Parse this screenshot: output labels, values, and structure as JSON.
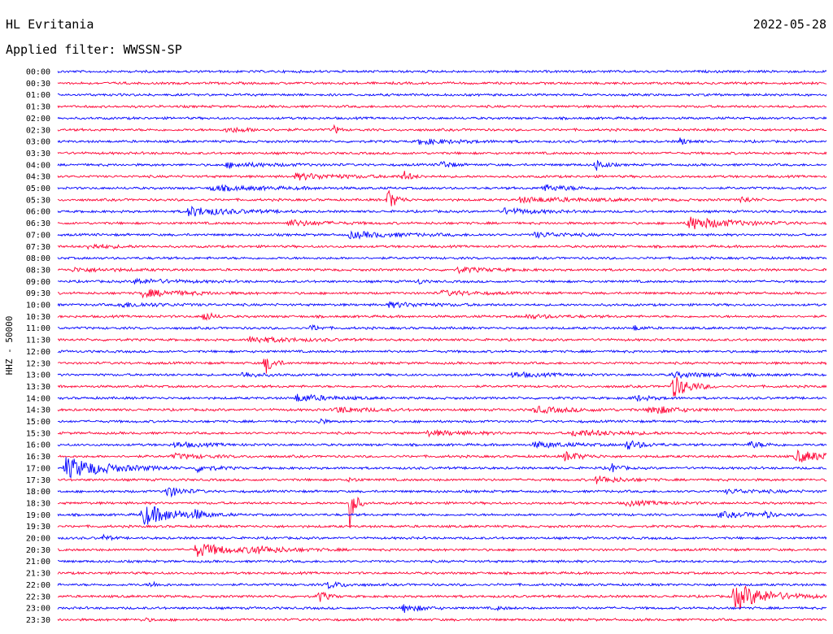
{
  "header": {
    "station": "HL Evritania",
    "date": "2022-05-28",
    "filter": "Applied filter: WWSSN-SP"
  },
  "chart_data": {
    "type": "line",
    "title": "HL Evritania",
    "subtitle": "Applied filter: WWSSN-SP",
    "ylabel": "HHZ - 50000",
    "xlabel": "",
    "grid": false,
    "legend": "none",
    "colors": {
      "even_rows": "#0000ff",
      "odd_rows": "#ff0033"
    },
    "row_labels": [
      "00:00",
      "00:30",
      "01:00",
      "01:30",
      "02:00",
      "02:30",
      "03:00",
      "03:30",
      "04:00",
      "04:30",
      "05:00",
      "05:30",
      "06:00",
      "06:30",
      "07:00",
      "07:30",
      "08:00",
      "08:30",
      "09:00",
      "09:30",
      "10:00",
      "10:30",
      "11:00",
      "11:30",
      "12:00",
      "12:30",
      "13:00",
      "13:30",
      "14:00",
      "14:30",
      "15:00",
      "15:30",
      "16:00",
      "16:30",
      "17:00",
      "17:30",
      "18:00",
      "18:30",
      "19:00",
      "19:30",
      "20:00",
      "20:30",
      "21:00",
      "21:30",
      "22:00",
      "22:30",
      "23:00",
      "23:30"
    ],
    "events": [
      {
        "row": 5,
        "x": 0.22,
        "amp": 0.4,
        "dur": 0.03
      },
      {
        "row": 5,
        "x": 0.36,
        "amp": 0.8,
        "dur": 0.005
      },
      {
        "row": 6,
        "x": 0.47,
        "amp": 0.4,
        "dur": 0.05
      },
      {
        "row": 6,
        "x": 0.81,
        "amp": 0.6,
        "dur": 0.01
      },
      {
        "row": 8,
        "x": 0.22,
        "amp": 0.4,
        "dur": 0.05
      },
      {
        "row": 8,
        "x": 0.5,
        "amp": 0.8,
        "dur": 0.01
      },
      {
        "row": 8,
        "x": 0.7,
        "amp": 1.0,
        "dur": 0.01
      },
      {
        "row": 9,
        "x": 0.31,
        "amp": 0.5,
        "dur": 0.06
      },
      {
        "row": 9,
        "x": 0.45,
        "amp": 0.9,
        "dur": 0.008
      },
      {
        "row": 10,
        "x": 0.2,
        "amp": 0.4,
        "dur": 0.07
      },
      {
        "row": 10,
        "x": 0.63,
        "amp": 0.5,
        "dur": 0.04
      },
      {
        "row": 11,
        "x": 0.43,
        "amp": 1.8,
        "dur": 0.01
      },
      {
        "row": 11,
        "x": 0.6,
        "amp": 0.4,
        "dur": 0.08
      },
      {
        "row": 11,
        "x": 0.89,
        "amp": 0.6,
        "dur": 0.01
      },
      {
        "row": 12,
        "x": 0.17,
        "amp": 0.8,
        "dur": 0.05
      },
      {
        "row": 12,
        "x": 0.58,
        "amp": 0.5,
        "dur": 0.04
      },
      {
        "row": 13,
        "x": 0.3,
        "amp": 0.5,
        "dur": 0.04
      },
      {
        "row": 13,
        "x": 0.82,
        "amp": 1.1,
        "dur": 0.05
      },
      {
        "row": 14,
        "x": 0.38,
        "amp": 0.5,
        "dur": 0.06
      },
      {
        "row": 14,
        "x": 0.62,
        "amp": 0.4,
        "dur": 0.04
      },
      {
        "row": 15,
        "x": 0.04,
        "amp": 0.4,
        "dur": 0.03
      },
      {
        "row": 17,
        "x": 0.02,
        "amp": 0.3,
        "dur": 0.05
      },
      {
        "row": 17,
        "x": 0.52,
        "amp": 0.4,
        "dur": 0.04
      },
      {
        "row": 18,
        "x": 0.1,
        "amp": 0.4,
        "dur": 0.05
      },
      {
        "row": 18,
        "x": 0.47,
        "amp": 0.5,
        "dur": 0.005
      },
      {
        "row": 19,
        "x": 0.11,
        "amp": 0.6,
        "dur": 0.05
      },
      {
        "row": 19,
        "x": 0.5,
        "amp": 0.4,
        "dur": 0.04
      },
      {
        "row": 20,
        "x": 0.08,
        "amp": 0.4,
        "dur": 0.05
      },
      {
        "row": 20,
        "x": 0.43,
        "amp": 0.4,
        "dur": 0.05
      },
      {
        "row": 21,
        "x": 0.19,
        "amp": 0.9,
        "dur": 0.01
      },
      {
        "row": 21,
        "x": 0.61,
        "amp": 0.3,
        "dur": 0.04
      },
      {
        "row": 22,
        "x": 0.33,
        "amp": 0.5,
        "dur": 0.01
      },
      {
        "row": 22,
        "x": 0.75,
        "amp": 0.4,
        "dur": 0.01
      },
      {
        "row": 23,
        "x": 0.25,
        "amp": 0.5,
        "dur": 0.05
      },
      {
        "row": 25,
        "x": 0.27,
        "amp": 1.8,
        "dur": 0.01
      },
      {
        "row": 26,
        "x": 0.24,
        "amp": 0.5,
        "dur": 0.02
      },
      {
        "row": 26,
        "x": 0.59,
        "amp": 0.4,
        "dur": 0.04
      },
      {
        "row": 26,
        "x": 0.8,
        "amp": 0.4,
        "dur": 0.05
      },
      {
        "row": 27,
        "x": 0.8,
        "amp": 2.0,
        "dur": 0.02
      },
      {
        "row": 28,
        "x": 0.31,
        "amp": 0.6,
        "dur": 0.04
      },
      {
        "row": 28,
        "x": 0.75,
        "amp": 0.5,
        "dur": 0.02
      },
      {
        "row": 29,
        "x": 0.36,
        "amp": 0.5,
        "dur": 0.04
      },
      {
        "row": 29,
        "x": 0.62,
        "amp": 0.5,
        "dur": 0.05
      },
      {
        "row": 29,
        "x": 0.77,
        "amp": 0.8,
        "dur": 0.03
      },
      {
        "row": 30,
        "x": 0.34,
        "amp": 0.8,
        "dur": 0.005
      },
      {
        "row": 31,
        "x": 0.48,
        "amp": 0.4,
        "dur": 0.05
      },
      {
        "row": 31,
        "x": 0.67,
        "amp": 0.5,
        "dur": 0.06
      },
      {
        "row": 32,
        "x": 0.15,
        "amp": 0.4,
        "dur": 0.04
      },
      {
        "row": 32,
        "x": 0.62,
        "amp": 0.5,
        "dur": 0.04
      },
      {
        "row": 32,
        "x": 0.74,
        "amp": 0.8,
        "dur": 0.02
      },
      {
        "row": 32,
        "x": 0.9,
        "amp": 0.5,
        "dur": 0.02
      },
      {
        "row": 33,
        "x": 0.15,
        "amp": 0.4,
        "dur": 0.04
      },
      {
        "row": 33,
        "x": 0.66,
        "amp": 0.8,
        "dur": 0.02
      },
      {
        "row": 33,
        "x": 0.96,
        "amp": 1.0,
        "dur": 0.04
      },
      {
        "row": 34,
        "x": 0.01,
        "amp": 1.8,
        "dur": 0.05
      },
      {
        "row": 34,
        "x": 0.18,
        "amp": 0.6,
        "dur": 0.02
      },
      {
        "row": 34,
        "x": 0.72,
        "amp": 0.8,
        "dur": 0.01
      },
      {
        "row": 35,
        "x": 0.38,
        "amp": 0.4,
        "dur": 0.008
      },
      {
        "row": 35,
        "x": 0.7,
        "amp": 0.6,
        "dur": 0.03
      },
      {
        "row": 36,
        "x": 0.14,
        "amp": 1.0,
        "dur": 0.02
      },
      {
        "row": 36,
        "x": 0.87,
        "amp": 0.3,
        "dur": 0.05
      },
      {
        "row": 37,
        "x": 0.38,
        "amp": 4.5,
        "dur": 0.006
      },
      {
        "row": 37,
        "x": 0.74,
        "amp": 0.4,
        "dur": 0.04
      },
      {
        "row": 38,
        "x": 0.11,
        "amp": 1.8,
        "dur": 0.04
      },
      {
        "row": 38,
        "x": 0.18,
        "amp": 0.8,
        "dur": 0.006
      },
      {
        "row": 38,
        "x": 0.86,
        "amp": 0.4,
        "dur": 0.05
      },
      {
        "row": 38,
        "x": 0.92,
        "amp": 0.6,
        "dur": 0.006
      },
      {
        "row": 40,
        "x": 0.06,
        "amp": 0.5,
        "dur": 0.008
      },
      {
        "row": 41,
        "x": 0.18,
        "amp": 1.2,
        "dur": 0.04
      },
      {
        "row": 41,
        "x": 0.25,
        "amp": 0.5,
        "dur": 0.05
      },
      {
        "row": 44,
        "x": 0.12,
        "amp": 0.5,
        "dur": 0.01
      },
      {
        "row": 44,
        "x": 0.35,
        "amp": 0.6,
        "dur": 0.02
      },
      {
        "row": 45,
        "x": 0.34,
        "amp": 1.0,
        "dur": 0.01
      },
      {
        "row": 45,
        "x": 0.88,
        "amp": 2.2,
        "dur": 0.04
      },
      {
        "row": 46,
        "x": 0.45,
        "amp": 0.7,
        "dur": 0.02
      },
      {
        "row": 46,
        "x": 0.57,
        "amp": 0.3,
        "dur": 0.01
      },
      {
        "row": 47,
        "x": 0.11,
        "amp": 0.3,
        "dur": 0.01
      }
    ]
  }
}
